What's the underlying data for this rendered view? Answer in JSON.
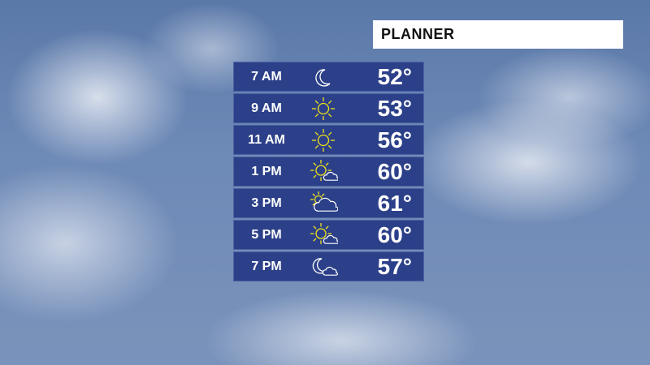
{
  "header": {
    "title": "PLANNER"
  },
  "colors": {
    "row_bg": "#2c4089",
    "sun": "#f2e316",
    "outline": "#ffffff"
  },
  "forecast": [
    {
      "time": "7 AM",
      "icon": "moon-icon",
      "temp": "52°"
    },
    {
      "time": "9 AM",
      "icon": "sun-icon",
      "temp": "53°"
    },
    {
      "time": "11 AM",
      "icon": "sun-icon",
      "temp": "56°"
    },
    {
      "time": "1 PM",
      "icon": "sun-small-cloud-icon",
      "temp": "60°"
    },
    {
      "time": "3 PM",
      "icon": "partly-cloudy-icon",
      "temp": "61°"
    },
    {
      "time": "5 PM",
      "icon": "sun-small-cloud-icon",
      "temp": "60°"
    },
    {
      "time": "7 PM",
      "icon": "moon-cloud-icon",
      "temp": "57°"
    }
  ]
}
